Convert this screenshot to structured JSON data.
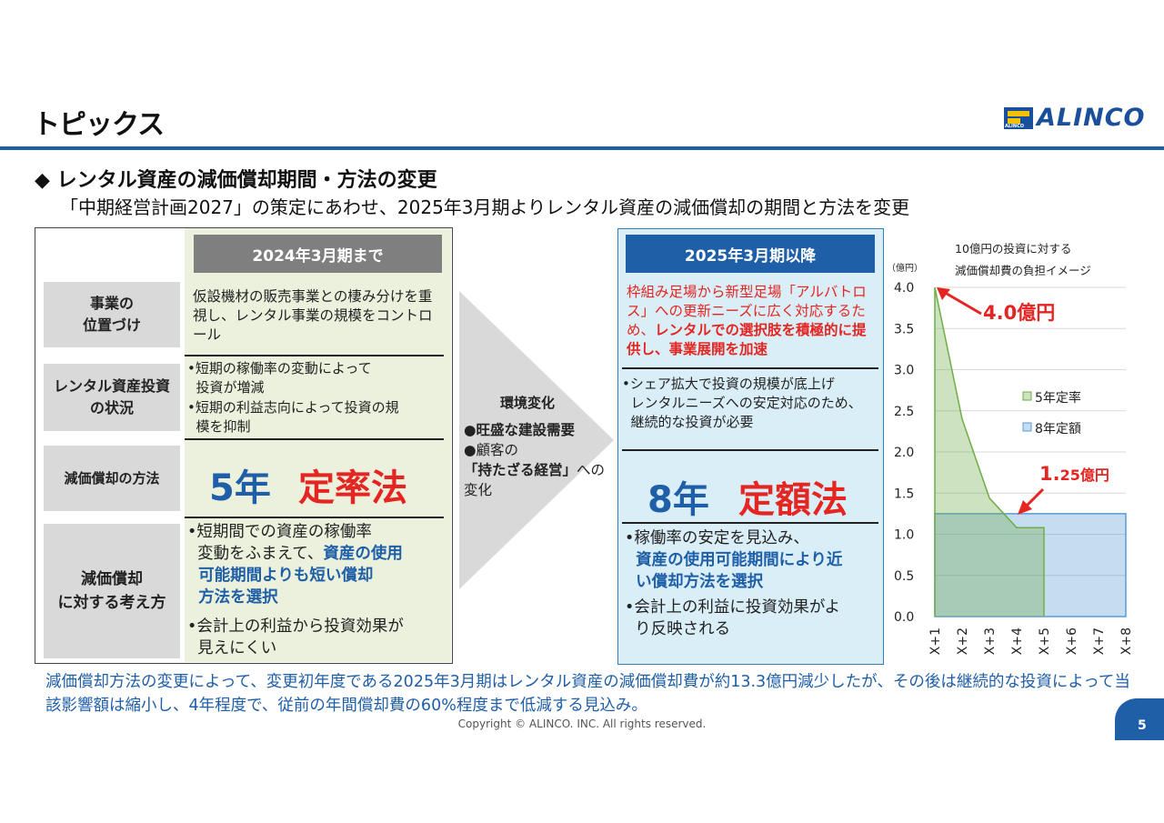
{
  "header": {
    "title": "トピックス",
    "logo_text": "ALINCO",
    "logo_sub": "ALINCO"
  },
  "section": {
    "heading": "◆ レンタル資産の減価償却期間・方法の変更",
    "subtitle": "「中期経営計画2027」の策定にあわせ、2025年3月期よりレンタル資産の減価償却の期間と方法を変更"
  },
  "rows": {
    "positioning": "事業の\n位置づけ",
    "investment": "レンタル資産投資\nの状況",
    "method": "減価償却の方法",
    "approach": "減価償却\nに対する考え方"
  },
  "old": {
    "header": "2024年3月期まで",
    "positioning": "仮設機材の販売事業との棲み分けを重視し、レンタル事業の規模をコントロール",
    "investment_1": "•短期の稼働率の変動によって\n  投資が増減",
    "investment_2": "•短期の利益志向によって投資の規\n  模を抑制",
    "method_years": "5年",
    "method_name": "定率法",
    "approach_1": "•短期間での資産の稼働率\n  変動をふまえて、",
    "approach_1_bold": "資産の使用\n  可能期間よりも短い償却\n  方法を選択",
    "approach_2": "•会計上の利益から投資効果が\n  見えにくい"
  },
  "environment": {
    "title": "環境変化",
    "item1": "●旺盛な建設需要",
    "item2a": "●顧客の",
    "item2b": "「持たざる経営」",
    "item2c": "への\n変化"
  },
  "new": {
    "header": "2025年3月期以降",
    "positioning_red": "枠組み足場から新型足場「アルバトロス」への更新ニーズに広く対応するため、",
    "positioning_bold": "レンタルでの選択肢を積極的に提供し、事業展開を加速",
    "investment": "•シェア拡大で投資の規模が底上げ\n  レンタルニーズへの安定対応のため、\n  継続的な投資が必要",
    "method_years": "8年",
    "method_name": "定額法",
    "approach_1": "•稼働率の安定を見込み、",
    "approach_1_bold": "  資産の使用可能期間により近\n  い償却方法を選択",
    "approach_2": "•会計上の利益に投資効果がよ\n  り反映される"
  },
  "chart_data": {
    "type": "area",
    "title_line1": "10億円の投資に対する",
    "title_line2": "減価償却費の負担イメージ",
    "yunit": "（億円）",
    "categories": [
      "X+1",
      "X+2",
      "X+3",
      "X+4",
      "X+5",
      "X+6",
      "X+7",
      "X+8"
    ],
    "yticks": [
      "0.0",
      "0.5",
      "1.0",
      "1.5",
      "2.0",
      "2.5",
      "3.0",
      "3.5",
      "4.0"
    ],
    "ylim": [
      0,
      4.0
    ],
    "series": [
      {
        "name": "5年定率",
        "values": [
          4.0,
          2.4,
          1.44,
          1.08,
          1.08,
          0,
          0,
          0
        ],
        "color": "#70ad47"
      },
      {
        "name": "8年定額",
        "values": [
          1.25,
          1.25,
          1.25,
          1.25,
          1.25,
          1.25,
          1.25,
          1.25
        ],
        "color": "#5b9bd5"
      }
    ],
    "annotations": [
      {
        "text_main": "4.0",
        "text_suffix": "億円",
        "x": "X+1",
        "y": 4.0
      },
      {
        "text_main": "1.",
        "text_suffix": "25億円",
        "x": "X+4",
        "y": 1.25
      }
    ],
    "legend_position": "right"
  },
  "footer": {
    "note": "減価償却方法の変更によって、変更初年度である2025年3月期はレンタル資産の減価償却費が約13.3億円減少したが、その後は継続的な投資によって当該影響額は縮小し、4年程度で、従前の年間償却費の60%程度まで低減する見込み。",
    "copyright": "Copyright © ALINCO. INC. All rights reserved.",
    "page": "5"
  },
  "colors": {
    "brand_blue": "#1f5fa8",
    "accent_red": "#e52521",
    "old_green_bg": "#ebf1dd",
    "new_blue_bg": "#daeef7"
  }
}
